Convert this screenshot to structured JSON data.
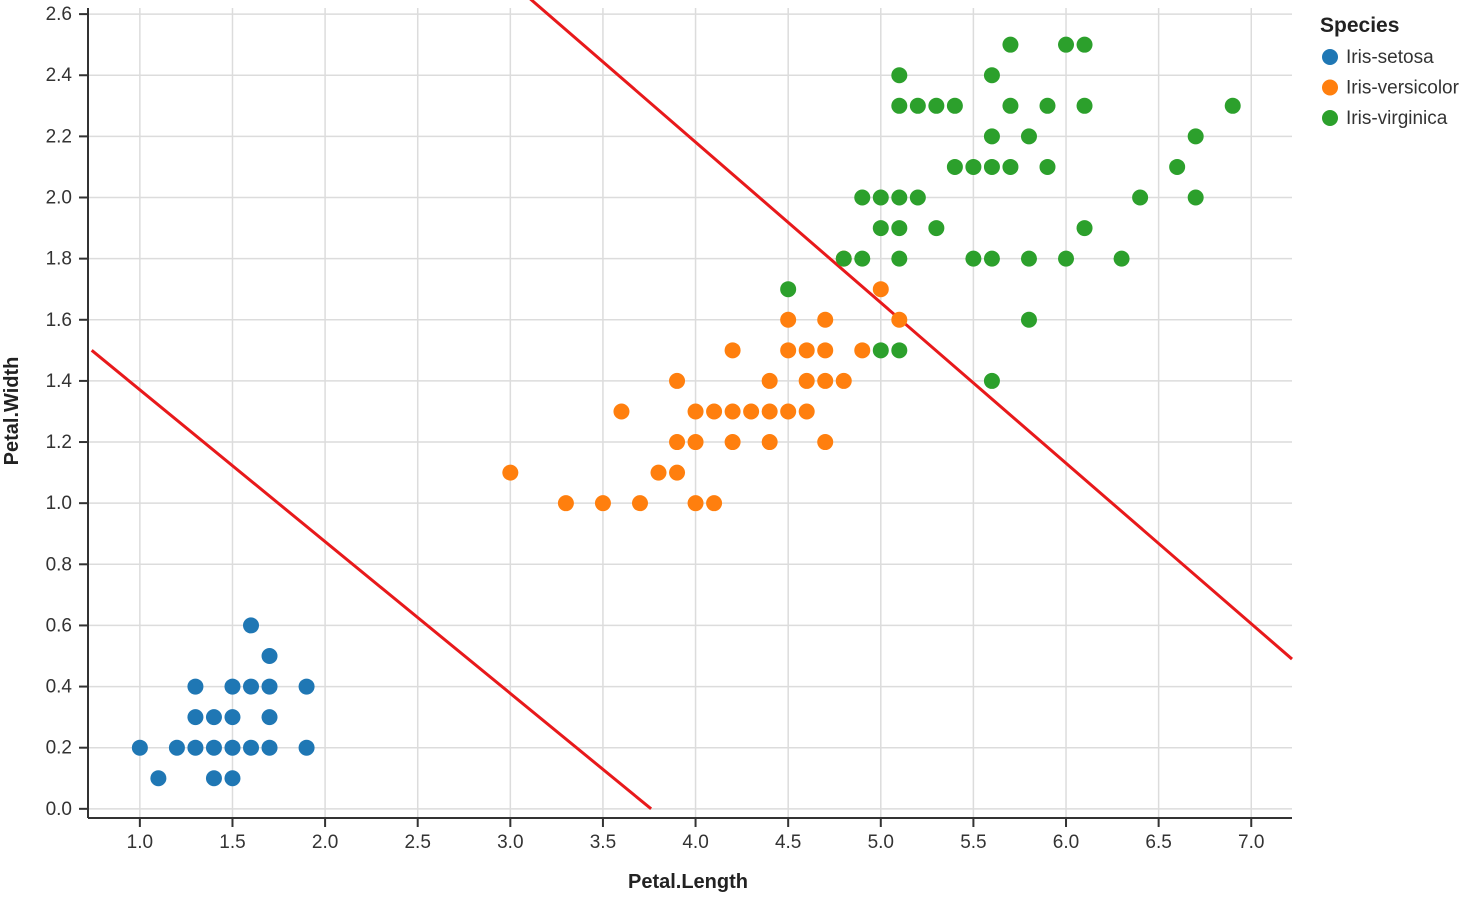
{
  "chart_data": {
    "type": "scatter",
    "xlabel": "Petal.Length",
    "ylabel": "Petal.Width",
    "xlim": [
      0.72,
      7.22
    ],
    "ylim": [
      -0.03,
      2.62
    ],
    "xticks": [
      "1.0",
      "1.5",
      "2.0",
      "2.5",
      "3.0",
      "3.5",
      "4.0",
      "4.5",
      "5.0",
      "5.5",
      "6.0",
      "6.5",
      "7.0"
    ],
    "yticks": [
      "0.0",
      "0.2",
      "0.4",
      "0.6",
      "0.8",
      "1.0",
      "1.2",
      "1.4",
      "1.6",
      "1.8",
      "2.0",
      "2.2",
      "2.4",
      "2.6"
    ],
    "grid": true,
    "legend": {
      "title": "Species",
      "placement": "top-right"
    },
    "series": [
      {
        "name": "Iris-setosa",
        "color": "#1f77b4",
        "points": [
          [
            1.0,
            0.2
          ],
          [
            1.1,
            0.1
          ],
          [
            1.2,
            0.2
          ],
          [
            1.3,
            0.2
          ],
          [
            1.3,
            0.3
          ],
          [
            1.3,
            0.4
          ],
          [
            1.4,
            0.1
          ],
          [
            1.4,
            0.2
          ],
          [
            1.4,
            0.3
          ],
          [
            1.5,
            0.1
          ],
          [
            1.5,
            0.2
          ],
          [
            1.5,
            0.3
          ],
          [
            1.5,
            0.4
          ],
          [
            1.6,
            0.2
          ],
          [
            1.6,
            0.4
          ],
          [
            1.6,
            0.6
          ],
          [
            1.7,
            0.2
          ],
          [
            1.7,
            0.3
          ],
          [
            1.7,
            0.4
          ],
          [
            1.7,
            0.5
          ],
          [
            1.9,
            0.2
          ],
          [
            1.9,
            0.4
          ]
        ]
      },
      {
        "name": "Iris-versicolor",
        "color": "#ff7f0e",
        "points": [
          [
            3.0,
            1.1
          ],
          [
            3.3,
            1.0
          ],
          [
            3.5,
            1.0
          ],
          [
            3.6,
            1.3
          ],
          [
            3.7,
            1.0
          ],
          [
            3.8,
            1.1
          ],
          [
            3.9,
            1.1
          ],
          [
            3.9,
            1.2
          ],
          [
            3.9,
            1.4
          ],
          [
            4.0,
            1.0
          ],
          [
            4.0,
            1.2
          ],
          [
            4.0,
            1.3
          ],
          [
            4.1,
            1.0
          ],
          [
            4.1,
            1.3
          ],
          [
            4.2,
            1.2
          ],
          [
            4.2,
            1.3
          ],
          [
            4.2,
            1.5
          ],
          [
            4.3,
            1.3
          ],
          [
            4.4,
            1.2
          ],
          [
            4.4,
            1.3
          ],
          [
            4.4,
            1.4
          ],
          [
            4.5,
            1.3
          ],
          [
            4.5,
            1.5
          ],
          [
            4.5,
            1.6
          ],
          [
            4.6,
            1.3
          ],
          [
            4.6,
            1.4
          ],
          [
            4.6,
            1.5
          ],
          [
            4.7,
            1.2
          ],
          [
            4.7,
            1.4
          ],
          [
            4.7,
            1.5
          ],
          [
            4.7,
            1.6
          ],
          [
            4.8,
            1.4
          ],
          [
            4.8,
            1.8
          ],
          [
            4.9,
            1.5
          ],
          [
            5.0,
            1.7
          ],
          [
            5.1,
            1.6
          ]
        ]
      },
      {
        "name": "Iris-virginica",
        "color": "#2ca02c",
        "points": [
          [
            4.5,
            1.7
          ],
          [
            4.8,
            1.8
          ],
          [
            4.9,
            1.8
          ],
          [
            4.9,
            2.0
          ],
          [
            5.0,
            1.5
          ],
          [
            5.0,
            1.9
          ],
          [
            5.0,
            2.0
          ],
          [
            5.1,
            1.5
          ],
          [
            5.1,
            1.8
          ],
          [
            5.1,
            1.9
          ],
          [
            5.1,
            2.0
          ],
          [
            5.1,
            2.3
          ],
          [
            5.1,
            2.4
          ],
          [
            5.2,
            2.0
          ],
          [
            5.2,
            2.3
          ],
          [
            5.3,
            1.9
          ],
          [
            5.3,
            2.3
          ],
          [
            5.4,
            2.1
          ],
          [
            5.4,
            2.3
          ],
          [
            5.5,
            1.8
          ],
          [
            5.5,
            2.1
          ],
          [
            5.6,
            1.4
          ],
          [
            5.6,
            1.8
          ],
          [
            5.6,
            2.1
          ],
          [
            5.6,
            2.2
          ],
          [
            5.6,
            2.4
          ],
          [
            5.7,
            2.1
          ],
          [
            5.7,
            2.3
          ],
          [
            5.7,
            2.5
          ],
          [
            5.8,
            1.6
          ],
          [
            5.8,
            1.8
          ],
          [
            5.8,
            2.2
          ],
          [
            5.9,
            2.1
          ],
          [
            5.9,
            2.3
          ],
          [
            6.0,
            1.8
          ],
          [
            6.0,
            2.5
          ],
          [
            6.1,
            1.9
          ],
          [
            6.1,
            2.3
          ],
          [
            6.1,
            2.5
          ],
          [
            6.3,
            1.8
          ],
          [
            6.4,
            2.0
          ],
          [
            6.6,
            2.1
          ],
          [
            6.7,
            2.0
          ],
          [
            6.7,
            2.2
          ],
          [
            6.9,
            2.3
          ]
        ]
      }
    ],
    "decision_lines": [
      {
        "color": "#e8191b",
        "from": [
          0.74,
          1.5
        ],
        "to": [
          3.76,
          0.0
        ]
      },
      {
        "color": "#e8191b",
        "from": [
          3.05,
          2.68
        ],
        "to": [
          7.22,
          0.49
        ]
      }
    ]
  }
}
